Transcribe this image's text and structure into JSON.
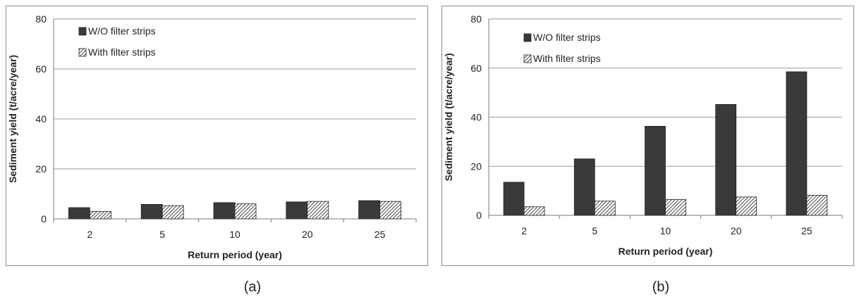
{
  "legend_hatch_color": "#333333",
  "chart_data": [
    {
      "type": "bar",
      "title": "",
      "caption": "(a)",
      "xlabel": "Return period (year)",
      "ylabel": "Sediment yield (t/acre/year)",
      "categories": [
        "2",
        "5",
        "10",
        "20",
        "25"
      ],
      "ylim": [
        0,
        80
      ],
      "yticks": [
        "0",
        "20",
        "40",
        "60",
        "80"
      ],
      "grid": true,
      "legend_position": "top-left",
      "series": [
        {
          "name": "W/O filter strips",
          "values": [
            4.5,
            5.8,
            6.5,
            6.8,
            7.3
          ],
          "fill": "#3a3a3a",
          "pattern": "solid"
        },
        {
          "name": "With filter strips",
          "values": [
            3.0,
            5.3,
            6.0,
            7.0,
            7.0
          ],
          "fill": "#ffffff",
          "pattern": "hatch"
        }
      ]
    },
    {
      "type": "bar",
      "title": "",
      "caption": "(b)",
      "xlabel": "Return period (year)",
      "ylabel": "Sediment yield (t/acre/year)",
      "categories": [
        "2",
        "5",
        "10",
        "20",
        "25"
      ],
      "ylim": [
        0,
        80
      ],
      "yticks": [
        "0",
        "20",
        "40",
        "60",
        "80"
      ],
      "grid": true,
      "legend_position": "top-left",
      "series": [
        {
          "name": "W/O filter strips",
          "values": [
            13.5,
            23.0,
            36.3,
            45.2,
            58.5
          ],
          "fill": "#3a3a3a",
          "pattern": "solid"
        },
        {
          "name": "With filter strips",
          "values": [
            3.5,
            5.8,
            6.5,
            7.5,
            8.2
          ],
          "fill": "#ffffff",
          "pattern": "hatch"
        }
      ]
    }
  ]
}
